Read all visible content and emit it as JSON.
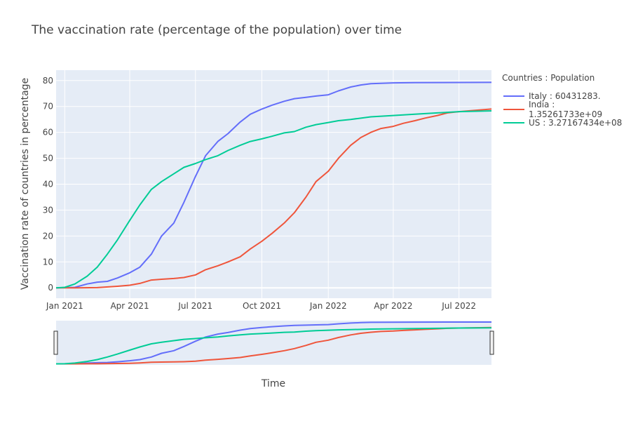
{
  "chart_data": {
    "type": "line",
    "title": "The vaccination rate (percentage of the population) over time",
    "xlabel": "Time",
    "ylabel": "Vaccination rate of countries in percentage",
    "ylim": [
      -4,
      84
    ],
    "yticks": [
      0,
      10,
      20,
      30,
      40,
      50,
      60,
      70,
      80
    ],
    "xlim": [
      "2020-12-20",
      "2022-08-15"
    ],
    "xticks": [
      {
        "date": "2021-01-01",
        "label": "Jan 2021"
      },
      {
        "date": "2021-04-01",
        "label": "Apr 2021"
      },
      {
        "date": "2021-07-01",
        "label": "Jul 2021"
      },
      {
        "date": "2021-10-01",
        "label": "Oct 2021"
      },
      {
        "date": "2022-01-01",
        "label": "Jan 2022"
      },
      {
        "date": "2022-04-01",
        "label": "Apr 2022"
      },
      {
        "date": "2022-07-01",
        "label": "Jul 2022"
      }
    ],
    "grid": true,
    "range_slider": true,
    "legend": {
      "title": "Countries : Population",
      "position": "right"
    },
    "series": [
      {
        "name": "Italy : 60431283.",
        "color": "#636efa",
        "points": [
          [
            "2020-12-20",
            0
          ],
          [
            "2021-01-15",
            0.2
          ],
          [
            "2021-02-01",
            1.5
          ],
          [
            "2021-02-15",
            2.2
          ],
          [
            "2021-03-01",
            2.5
          ],
          [
            "2021-03-15",
            3.8
          ],
          [
            "2021-04-01",
            5.8
          ],
          [
            "2021-04-15",
            8
          ],
          [
            "2021-05-01",
            13
          ],
          [
            "2021-05-15",
            20
          ],
          [
            "2021-06-01",
            25
          ],
          [
            "2021-06-15",
            33
          ],
          [
            "2021-07-01",
            43
          ],
          [
            "2021-07-15",
            51
          ],
          [
            "2021-08-01",
            56.5
          ],
          [
            "2021-08-15",
            59.5
          ],
          [
            "2021-09-01",
            64
          ],
          [
            "2021-09-15",
            67
          ],
          [
            "2021-10-01",
            69
          ],
          [
            "2021-10-15",
            70.5
          ],
          [
            "2021-11-01",
            72
          ],
          [
            "2021-11-15",
            73
          ],
          [
            "2021-12-01",
            73.5
          ],
          [
            "2021-12-15",
            74
          ],
          [
            "2022-01-01",
            74.5
          ],
          [
            "2022-01-15",
            76
          ],
          [
            "2022-02-01",
            77.5
          ],
          [
            "2022-02-15",
            78.3
          ],
          [
            "2022-03-01",
            78.8
          ],
          [
            "2022-04-01",
            79.1
          ],
          [
            "2022-05-01",
            79.2
          ],
          [
            "2022-08-15",
            79.3
          ]
        ]
      },
      {
        "name": "India : 1.35261733e+09",
        "color": "#ef553b",
        "points": [
          [
            "2020-12-20",
            0
          ],
          [
            "2021-01-15",
            0
          ],
          [
            "2021-02-15",
            0.1
          ],
          [
            "2021-03-15",
            0.6
          ],
          [
            "2021-04-01",
            1
          ],
          [
            "2021-04-15",
            1.7
          ],
          [
            "2021-05-01",
            3
          ],
          [
            "2021-05-15",
            3.3
          ],
          [
            "2021-06-01",
            3.6
          ],
          [
            "2021-06-15",
            4
          ],
          [
            "2021-07-01",
            5
          ],
          [
            "2021-07-15",
            7
          ],
          [
            "2021-08-01",
            8.5
          ],
          [
            "2021-08-15",
            10
          ],
          [
            "2021-09-01",
            12
          ],
          [
            "2021-09-15",
            15
          ],
          [
            "2021-10-01",
            18
          ],
          [
            "2021-10-15",
            21
          ],
          [
            "2021-11-01",
            25
          ],
          [
            "2021-11-15",
            29
          ],
          [
            "2021-12-01",
            35
          ],
          [
            "2021-12-15",
            41
          ],
          [
            "2022-01-01",
            45
          ],
          [
            "2022-01-15",
            50
          ],
          [
            "2022-02-01",
            55
          ],
          [
            "2022-02-15",
            58
          ],
          [
            "2022-03-01",
            60
          ],
          [
            "2022-03-15",
            61.5
          ],
          [
            "2022-04-01",
            62.3
          ],
          [
            "2022-04-15",
            63.5
          ],
          [
            "2022-05-01",
            64.5
          ],
          [
            "2022-05-15",
            65.5
          ],
          [
            "2022-06-01",
            66.5
          ],
          [
            "2022-06-15",
            67.5
          ],
          [
            "2022-07-01",
            68
          ],
          [
            "2022-08-15",
            69
          ]
        ]
      },
      {
        "name": "US : 3.27167434e+08",
        "color": "#00cc96",
        "points": [
          [
            "2020-12-20",
            0
          ],
          [
            "2021-01-01",
            0.2
          ],
          [
            "2021-01-15",
            1.5
          ],
          [
            "2021-02-01",
            4.5
          ],
          [
            "2021-02-15",
            8
          ],
          [
            "2021-03-01",
            13
          ],
          [
            "2021-03-15",
            18.5
          ],
          [
            "2021-04-01",
            26
          ],
          [
            "2021-04-15",
            32
          ],
          [
            "2021-05-01",
            38
          ],
          [
            "2021-05-15",
            41
          ],
          [
            "2021-06-01",
            44
          ],
          [
            "2021-06-15",
            46.5
          ],
          [
            "2021-07-01",
            48
          ],
          [
            "2021-07-15",
            49.5
          ],
          [
            "2021-08-01",
            51
          ],
          [
            "2021-08-15",
            53
          ],
          [
            "2021-09-01",
            55
          ],
          [
            "2021-09-15",
            56.5
          ],
          [
            "2021-10-01",
            57.5
          ],
          [
            "2021-10-15",
            58.5
          ],
          [
            "2021-11-01",
            59.8
          ],
          [
            "2021-11-15",
            60.3
          ],
          [
            "2021-12-01",
            62
          ],
          [
            "2021-12-15",
            63
          ],
          [
            "2022-01-01",
            63.8
          ],
          [
            "2022-01-15",
            64.5
          ],
          [
            "2022-02-01",
            65
          ],
          [
            "2022-03-01",
            66
          ],
          [
            "2022-04-01",
            66.5
          ],
          [
            "2022-05-01",
            67
          ],
          [
            "2022-06-01",
            67.5
          ],
          [
            "2022-07-01",
            68
          ],
          [
            "2022-08-15",
            68.3
          ]
        ]
      }
    ]
  }
}
